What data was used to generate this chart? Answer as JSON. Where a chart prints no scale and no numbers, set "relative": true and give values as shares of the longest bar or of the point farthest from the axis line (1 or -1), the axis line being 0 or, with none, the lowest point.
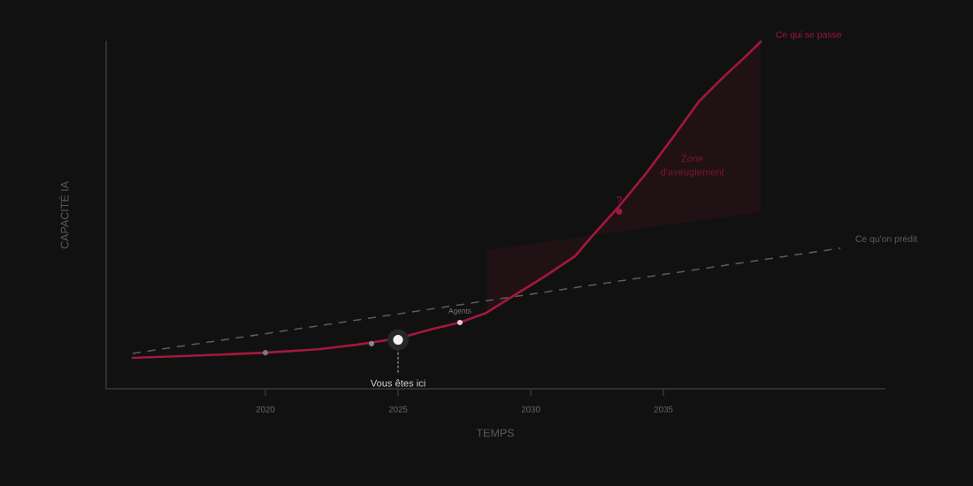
{
  "chart_data": {
    "type": "line",
    "relative": true,
    "xlabel": "TEMPS",
    "ylabel": "CAPACITÉ IA",
    "xlim": [
      2014,
      2043.33
    ],
    "xticks": [
      2020,
      2025,
      2030,
      2035
    ],
    "series": [
      {
        "name": "Ce qu'on prédit",
        "line_style": "dashed",
        "color": "#5c5c5c",
        "x": [
          2015,
          2041.67
        ],
        "values": [
          0.102,
          0.405
        ]
      },
      {
        "name": "Ce qui se passe",
        "line_style": "solid",
        "color": "#a3183b",
        "x": [
          2015,
          2017.5,
          2020,
          2022,
          2023.43,
          2025,
          2026.33,
          2027.33,
          2028.33,
          2029.33,
          2030.5,
          2031.67,
          2032.33,
          2033.33,
          2034.33,
          2035.33,
          2036.33,
          2037.33,
          2038,
          2038.67
        ],
        "values": [
          0.089,
          0.096,
          0.104,
          0.114,
          0.127,
          0.145,
          0.173,
          0.191,
          0.219,
          0.267,
          0.322,
          0.382,
          0.441,
          0.526,
          0.619,
          0.721,
          0.827,
          0.903,
          0.95,
          1.0
        ],
        "lower": [
          null,
          null,
          null,
          null,
          null,
          null,
          null,
          null,
          0.219,
          0.267,
          0.322,
          0.382,
          0.441,
          0.452,
          0.463,
          0.474,
          0.484,
          0.495,
          0.502,
          0.509
        ],
        "upper": [
          null,
          null,
          null,
          null,
          null,
          null,
          null,
          null,
          0.399,
          0.41,
          0.422,
          0.435,
          0.442,
          0.526,
          0.619,
          0.721,
          0.827,
          0.903,
          0.95,
          1.0
        ]
      },
      {
        "type": "scatter",
        "marker": "circle",
        "x": [
          2020,
          2024,
          2025,
          2027.33,
          2033.33
        ],
        "values": [
          0.104,
          0.13,
          0.141,
          0.191,
          0.51
        ],
        "sizes": [
          0.3,
          0.3,
          1,
          0.3,
          0.4
        ],
        "colors": [
          "#7a7a7a",
          "#888888",
          "#f2f2f2",
          "#e8c8cc",
          "#a3183b"
        ]
      }
    ],
    "annotations": [
      {
        "text": "Vous êtes ici",
        "x": 2025,
        "y": 0.141
      },
      {
        "text": "Agents",
        "x": 2027.33,
        "y": 0.191
      },
      {
        "text": "?",
        "x": 2033.33,
        "y": 0.51
      },
      "Zone\nd'aveuglement"
    ]
  }
}
